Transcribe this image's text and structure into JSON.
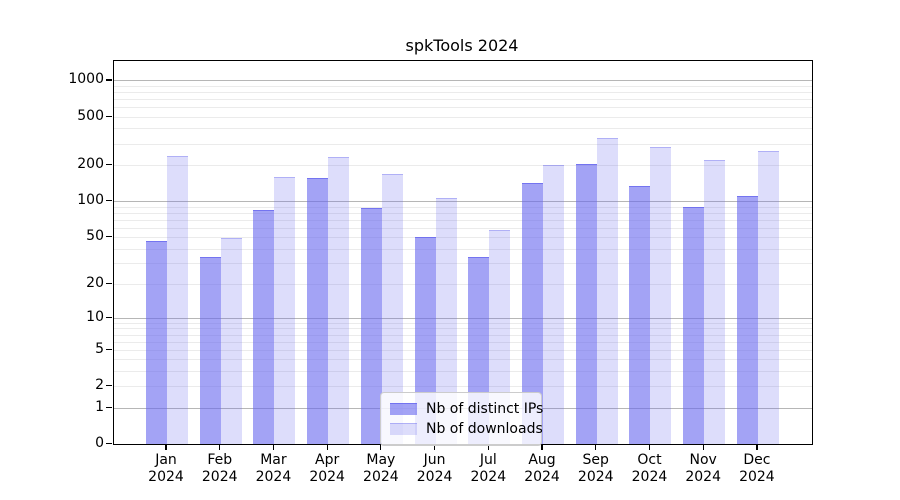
{
  "title": "spkTools 2024",
  "chart_data": {
    "type": "bar",
    "title": "spkTools 2024",
    "categories": [
      "Jan",
      "Feb",
      "Mar",
      "Apr",
      "May",
      "Jun",
      "Jul",
      "Aug",
      "Sep",
      "Oct",
      "Nov",
      "Dec"
    ],
    "category_year": "2024",
    "series": [
      {
        "name": "Nb of distinct IPs",
        "fill": "rgba(102,102,238,0.60)",
        "edge": "rgba(102,102,238,0.78)",
        "values": [
          46,
          34,
          85,
          157,
          88,
          50,
          34,
          141,
          203,
          134,
          89,
          110
        ]
      },
      {
        "name": "Nb of downloads",
        "fill": "rgba(102,102,238,0.22)",
        "edge": "rgba(102,102,238,0.38)",
        "values": [
          235,
          49,
          159,
          232,
          168,
          106,
          57,
          199,
          334,
          281,
          218,
          260
        ]
      }
    ],
    "y_scale": "log10(1+v)",
    "ylim": [
      0,
      1445
    ],
    "y_ticks": [
      0,
      1,
      2,
      5,
      10,
      20,
      50,
      100,
      200,
      500,
      1000
    ],
    "grid_major_values": [
      1,
      10,
      100,
      1000
    ],
    "grid_minor_values": [
      2,
      3,
      4,
      5,
      6,
      7,
      8,
      9,
      20,
      30,
      40,
      50,
      60,
      70,
      80,
      90,
      200,
      300,
      400,
      500,
      600,
      700,
      800,
      900
    ],
    "legend_position": "lower center"
  },
  "colors": {
    "accent": "#6666ee",
    "major_grid": "#b6b6b6",
    "minor_grid": "#ebebeb",
    "spine": "#000000",
    "legend_border": "#cccccc"
  }
}
